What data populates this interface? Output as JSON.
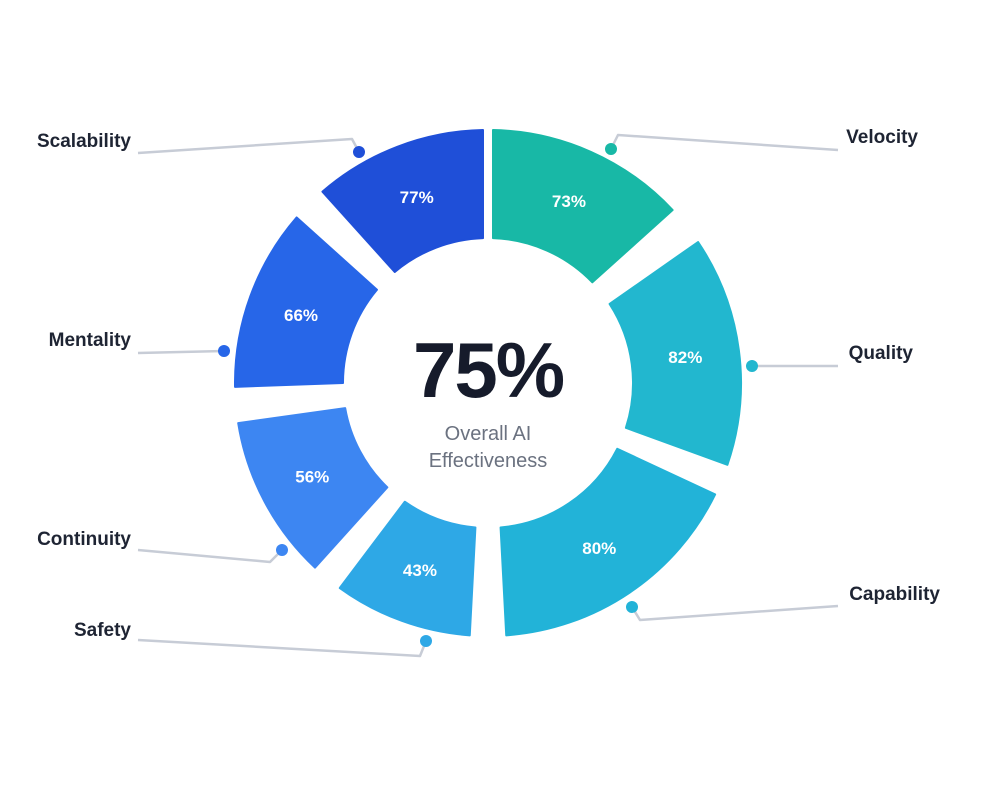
{
  "chart_data": {
    "type": "pie",
    "variant": "donut",
    "center": {
      "value": "75%",
      "label_line1": "Overall AI",
      "label_line2": "Effectiveness"
    },
    "segments": [
      {
        "name": "Velocity",
        "value": 73,
        "label": "73%",
        "color": "#18b8a6"
      },
      {
        "name": "Quality",
        "value": 82,
        "label": "82%",
        "color": "#22b7cf"
      },
      {
        "name": "Capability",
        "value": 80,
        "label": "80%",
        "color": "#22b3d8"
      },
      {
        "name": "Safety",
        "value": 43,
        "label": "43%",
        "color": "#2ea8e6"
      },
      {
        "name": "Continuity",
        "value": 56,
        "label": "56%",
        "color": "#3d86f2"
      },
      {
        "name": "Mentality",
        "value": 66,
        "label": "66%",
        "color": "#2766e8"
      },
      {
        "name": "Scalability",
        "value": 77,
        "label": "77%",
        "color": "#1f4fd8"
      }
    ],
    "leader_line_color": "#c7ccd6"
  }
}
